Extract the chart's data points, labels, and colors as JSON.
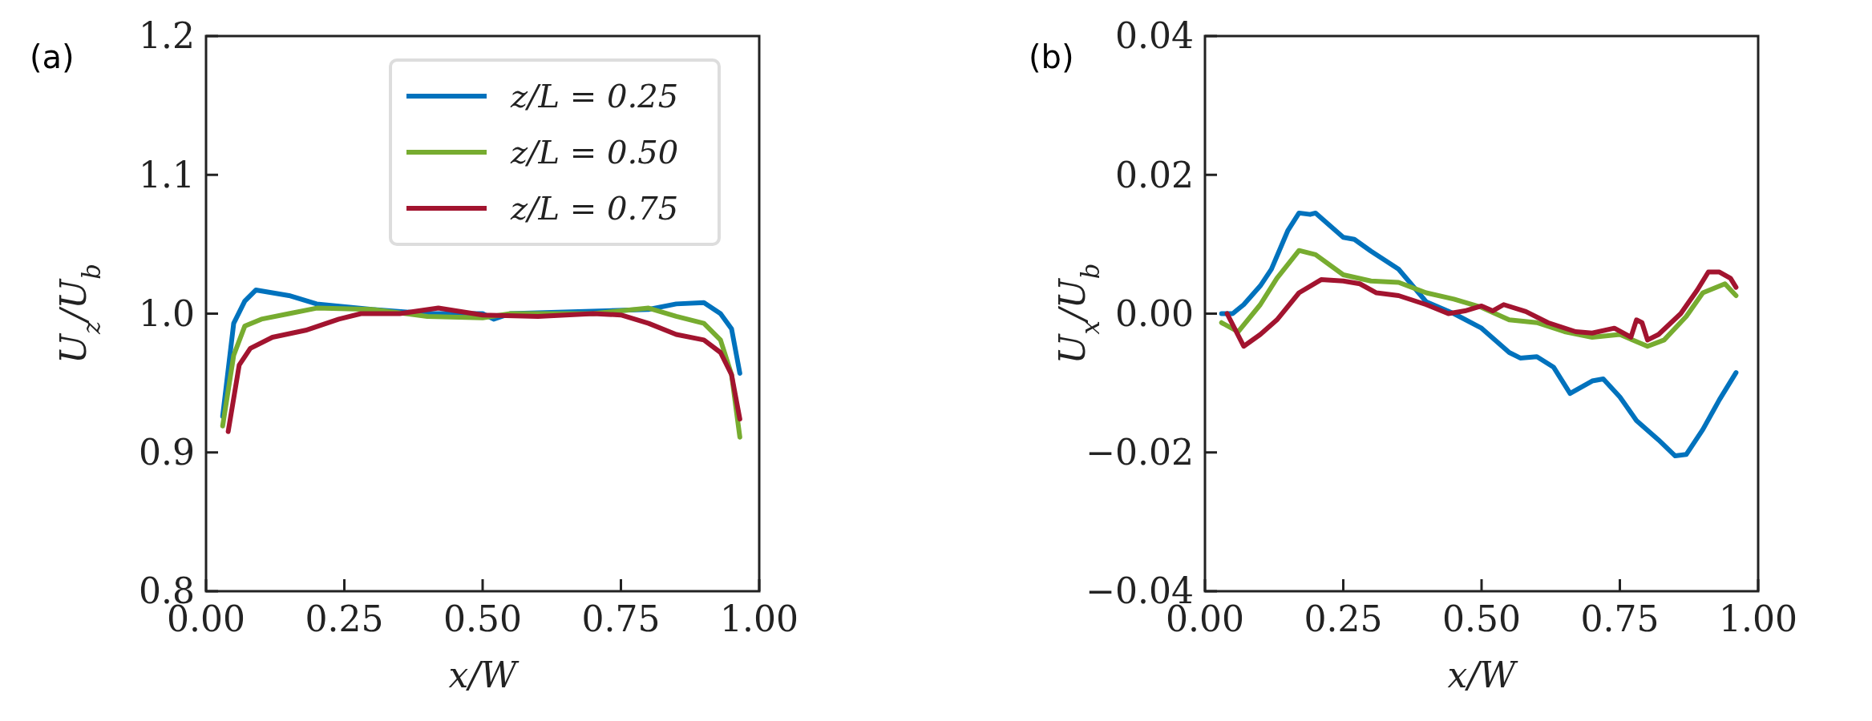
{
  "chart_data": [
    {
      "type": "line",
      "annotations": [
        "(a)"
      ],
      "xlabel": "x/W",
      "ylabel": "U$_{z}$/U$_{b}$",
      "xlim": [
        0,
        1
      ],
      "ylim": [
        0.8,
        1.2
      ],
      "xticks": [
        {
          "value": 0,
          "label": "0.00"
        },
        {
          "value": 0.25,
          "label": "0.25"
        },
        {
          "value": 0.5,
          "label": "0.50"
        },
        {
          "value": 0.75,
          "label": "0.75"
        },
        {
          "value": 1,
          "label": "1.00"
        }
      ],
      "yticks": [
        0.8,
        0.9,
        {
          "value": 1,
          "label": "1.0"
        },
        1.1,
        1.2
      ],
      "grid": false,
      "legend": "top",
      "line_style": "solid",
      "series": [
        {
          "name": "z/L = 0.25",
          "color": "#0072bd",
          "x": [
            0.03,
            0.05,
            0.07,
            0.09,
            0.15,
            0.2,
            0.3,
            0.4,
            0.5,
            0.52,
            0.55,
            0.8,
            0.85,
            0.9,
            0.93,
            0.95,
            0.965
          ],
          "values": [
            0.926,
            0.993,
            1.009,
            1.017,
            1.013,
            1.007,
            1.003,
            1.0,
            1.0,
            0.996,
            1.0,
            1.003,
            1.007,
            1.008,
            1.0,
            0.989,
            0.957
          ]
        },
        {
          "name": "z/L = 0.50",
          "color": "#77ac30",
          "x": [
            0.03,
            0.05,
            0.07,
            0.1,
            0.15,
            0.2,
            0.3,
            0.4,
            0.5,
            0.55,
            0.7,
            0.8,
            0.85,
            0.9,
            0.93,
            0.95,
            0.965
          ],
          "values": [
            0.919,
            0.97,
            0.991,
            0.996,
            1.0,
            1.004,
            1.003,
            0.998,
            0.997,
            1.0,
            1.0,
            1.004,
            0.998,
            0.993,
            0.981,
            0.956,
            0.911
          ]
        },
        {
          "name": "z/L = 0.75",
          "color": "#a2142f",
          "x": [
            0.04,
            0.06,
            0.08,
            0.12,
            0.18,
            0.24,
            0.28,
            0.35,
            0.42,
            0.5,
            0.6,
            0.7,
            0.75,
            0.8,
            0.85,
            0.9,
            0.93,
            0.95,
            0.965
          ],
          "values": [
            0.915,
            0.963,
            0.975,
            0.983,
            0.988,
            0.996,
            1.0,
            1.0,
            1.004,
            0.999,
            0.998,
            1.0,
            0.999,
            0.993,
            0.985,
            0.981,
            0.972,
            0.956,
            0.924
          ]
        }
      ]
    },
    {
      "type": "line",
      "annotations": [
        "(b)"
      ],
      "xlabel": "x/W",
      "ylabel": "U$_{x}$/U$_{b}$",
      "xlim": [
        0,
        1
      ],
      "ylim": [
        -0.04,
        0.04
      ],
      "xticks": [
        {
          "value": 0,
          "label": "0.00"
        },
        {
          "value": 0.25,
          "label": "0.25"
        },
        {
          "value": 0.5,
          "label": "0.50"
        },
        {
          "value": 0.75,
          "label": "0.75"
        },
        {
          "value": 1,
          "label": "1.00"
        }
      ],
      "yticks": [
        {
          "value": -0.04,
          "label": "−0.04"
        },
        {
          "value": -0.02,
          "label": "−0.02"
        },
        {
          "value": 0,
          "label": "0.00"
        },
        {
          "value": 0.02,
          "label": "0.02"
        },
        {
          "value": 0.04,
          "label": "0.04"
        }
      ],
      "grid": false,
      "line_style": "solid",
      "series": [
        {
          "color": "#0072bd",
          "x": [
            0.03,
            0.05,
            0.07,
            0.1,
            0.12,
            0.15,
            0.17,
            0.19,
            0.2,
            0.25,
            0.27,
            0.3,
            0.35,
            0.4,
            0.45,
            0.5,
            0.55,
            0.57,
            0.6,
            0.63,
            0.66,
            0.7,
            0.72,
            0.75,
            0.78,
            0.82,
            0.85,
            0.87,
            0.9,
            0.93,
            0.96
          ],
          "values": [
            0.0,
            0.0,
            0.0013,
            0.004,
            0.0064,
            0.012,
            0.0145,
            0.0143,
            0.0145,
            0.011,
            0.0107,
            0.009,
            0.0064,
            0.0017,
            0.0,
            -0.0021,
            -0.0056,
            -0.0064,
            -0.0062,
            -0.0077,
            -0.0115,
            -0.0097,
            -0.0094,
            -0.012,
            -0.0154,
            -0.0182,
            -0.0205,
            -0.0203,
            -0.0167,
            -0.0124,
            -0.0085
          ]
        },
        {
          "color": "#77ac30",
          "x": [
            0.03,
            0.06,
            0.1,
            0.13,
            0.17,
            0.2,
            0.25,
            0.3,
            0.35,
            0.4,
            0.45,
            0.5,
            0.55,
            0.6,
            0.65,
            0.7,
            0.75,
            0.8,
            0.83,
            0.87,
            0.9,
            0.94,
            0.96
          ],
          "values": [
            -0.0013,
            -0.0026,
            0.0013,
            0.0051,
            0.0091,
            0.0085,
            0.0056,
            0.0047,
            0.0045,
            0.003,
            0.0021,
            0.0009,
            -0.0009,
            -0.0013,
            -0.0026,
            -0.0034,
            -0.003,
            -0.0047,
            -0.0038,
            -0.0004,
            0.003,
            0.0043,
            0.0026
          ]
        },
        {
          "color": "#a2142f",
          "x": [
            0.04,
            0.07,
            0.1,
            0.13,
            0.17,
            0.21,
            0.25,
            0.28,
            0.31,
            0.35,
            0.4,
            0.44,
            0.47,
            0.5,
            0.52,
            0.54,
            0.58,
            0.62,
            0.67,
            0.7,
            0.74,
            0.77,
            0.78,
            0.79,
            0.8,
            0.82,
            0.86,
            0.89,
            0.91,
            0.93,
            0.95,
            0.96
          ],
          "values": [
            0.0,
            -0.0047,
            -0.003,
            -0.0009,
            0.003,
            0.0049,
            0.0047,
            0.0043,
            0.003,
            0.0026,
            0.0013,
            0.0,
            0.0004,
            0.0011,
            0.0004,
            0.0013,
            0.0003,
            -0.0013,
            -0.0026,
            -0.0028,
            -0.0021,
            -0.0034,
            -0.0009,
            -0.0013,
            -0.0038,
            -0.003,
            0.0,
            0.0034,
            0.006,
            0.006,
            0.0051,
            0.0038
          ]
        }
      ]
    }
  ]
}
